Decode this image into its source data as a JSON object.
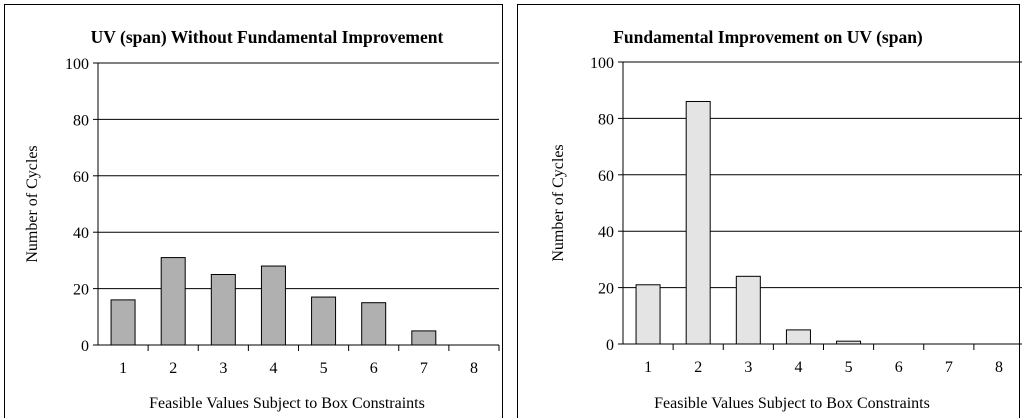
{
  "chart_data": [
    {
      "type": "bar",
      "title": "UV (span) Without Fundamental Improvement",
      "xlabel": "Feasible Values Subject to Box Constraints",
      "ylabel": "Number of Cycles",
      "categories": [
        "1",
        "2",
        "3",
        "4",
        "5",
        "6",
        "7",
        "8"
      ],
      "values": [
        16,
        31,
        25,
        28,
        17,
        15,
        5,
        0
      ],
      "ylim": [
        0,
        100
      ],
      "yticks": [
        0,
        20,
        40,
        60,
        80,
        100
      ],
      "grid": true,
      "bar_color": "#b0b0b0"
    },
    {
      "type": "bar",
      "title": "Fundamental Improvement on UV (span)",
      "xlabel": "Feasible Values Subject to Box Constraints",
      "ylabel": "Number of Cycles",
      "categories": [
        "1",
        "2",
        "3",
        "4",
        "5",
        "6",
        "7",
        "8"
      ],
      "values": [
        21,
        86,
        24,
        5,
        1,
        0,
        0,
        0
      ],
      "ylim": [
        0,
        100
      ],
      "yticks": [
        0,
        20,
        40,
        60,
        80,
        100
      ],
      "grid": true,
      "bar_color": "#e4e4e4"
    }
  ]
}
